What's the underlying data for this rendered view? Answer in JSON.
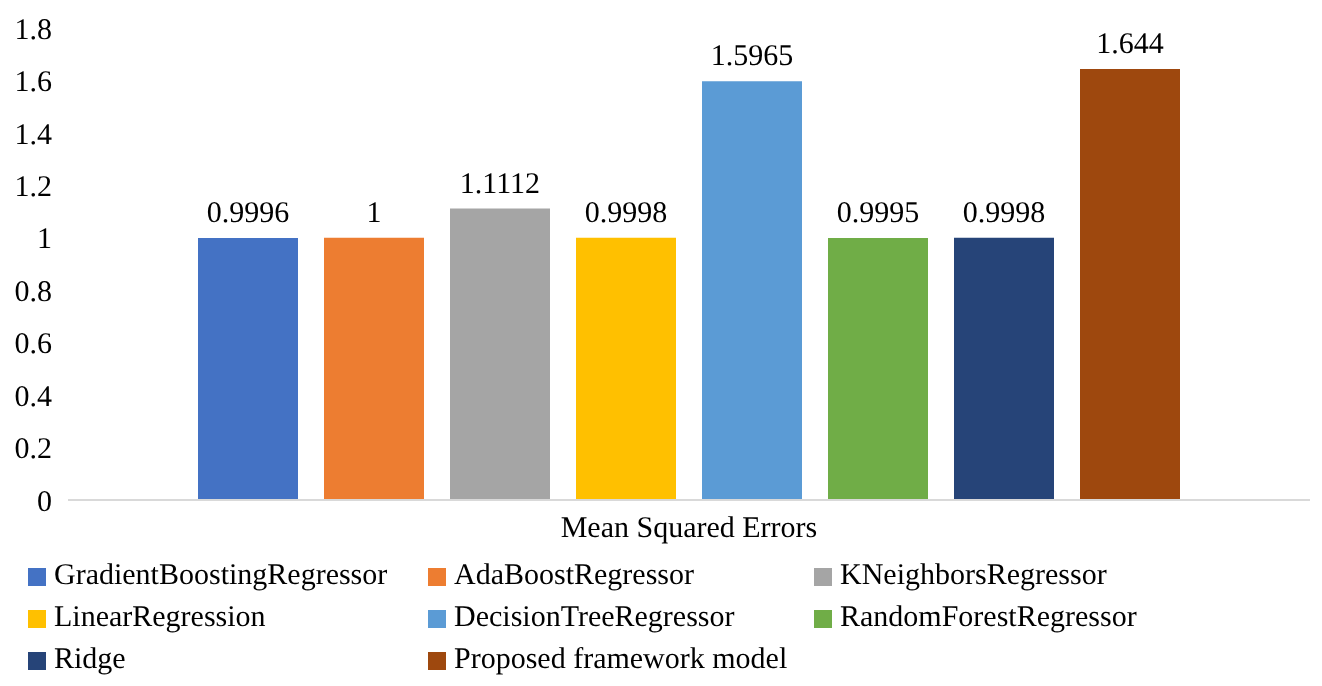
{
  "chart_data": {
    "type": "bar",
    "categories": [
      "Mean Squared Errors"
    ],
    "series": [
      {
        "name": "GradientBoostingRegressor",
        "color": "#4472c4",
        "values": [
          0.9996
        ]
      },
      {
        "name": "AdaBoostRegressor",
        "color": "#ed7d31",
        "values": [
          1
        ]
      },
      {
        "name": "KNeighborsRegressor",
        "color": "#a5a5a5",
        "values": [
          1.1112
        ]
      },
      {
        "name": "LinearRegression",
        "color": "#ffc000",
        "values": [
          0.9998
        ]
      },
      {
        "name": "DecisionTreeRegressor",
        "color": "#5b9bd5",
        "values": [
          1.5965
        ]
      },
      {
        "name": "RandomForestRegressor",
        "color": "#70ad47",
        "values": [
          0.9995
        ]
      },
      {
        "name": "Ridge",
        "color": "#264478",
        "values": [
          0.9998
        ]
      },
      {
        "name": "Proposed framework model",
        "color": "#9e480e",
        "values": [
          1.644
        ]
      }
    ],
    "ylim": [
      0,
      1.8
    ],
    "yticks": [
      0,
      0.2,
      0.4,
      0.6,
      0.8,
      1,
      1.2,
      1.4,
      1.6,
      1.8
    ],
    "data_labels": true,
    "grid": false,
    "legend": "bottom"
  }
}
